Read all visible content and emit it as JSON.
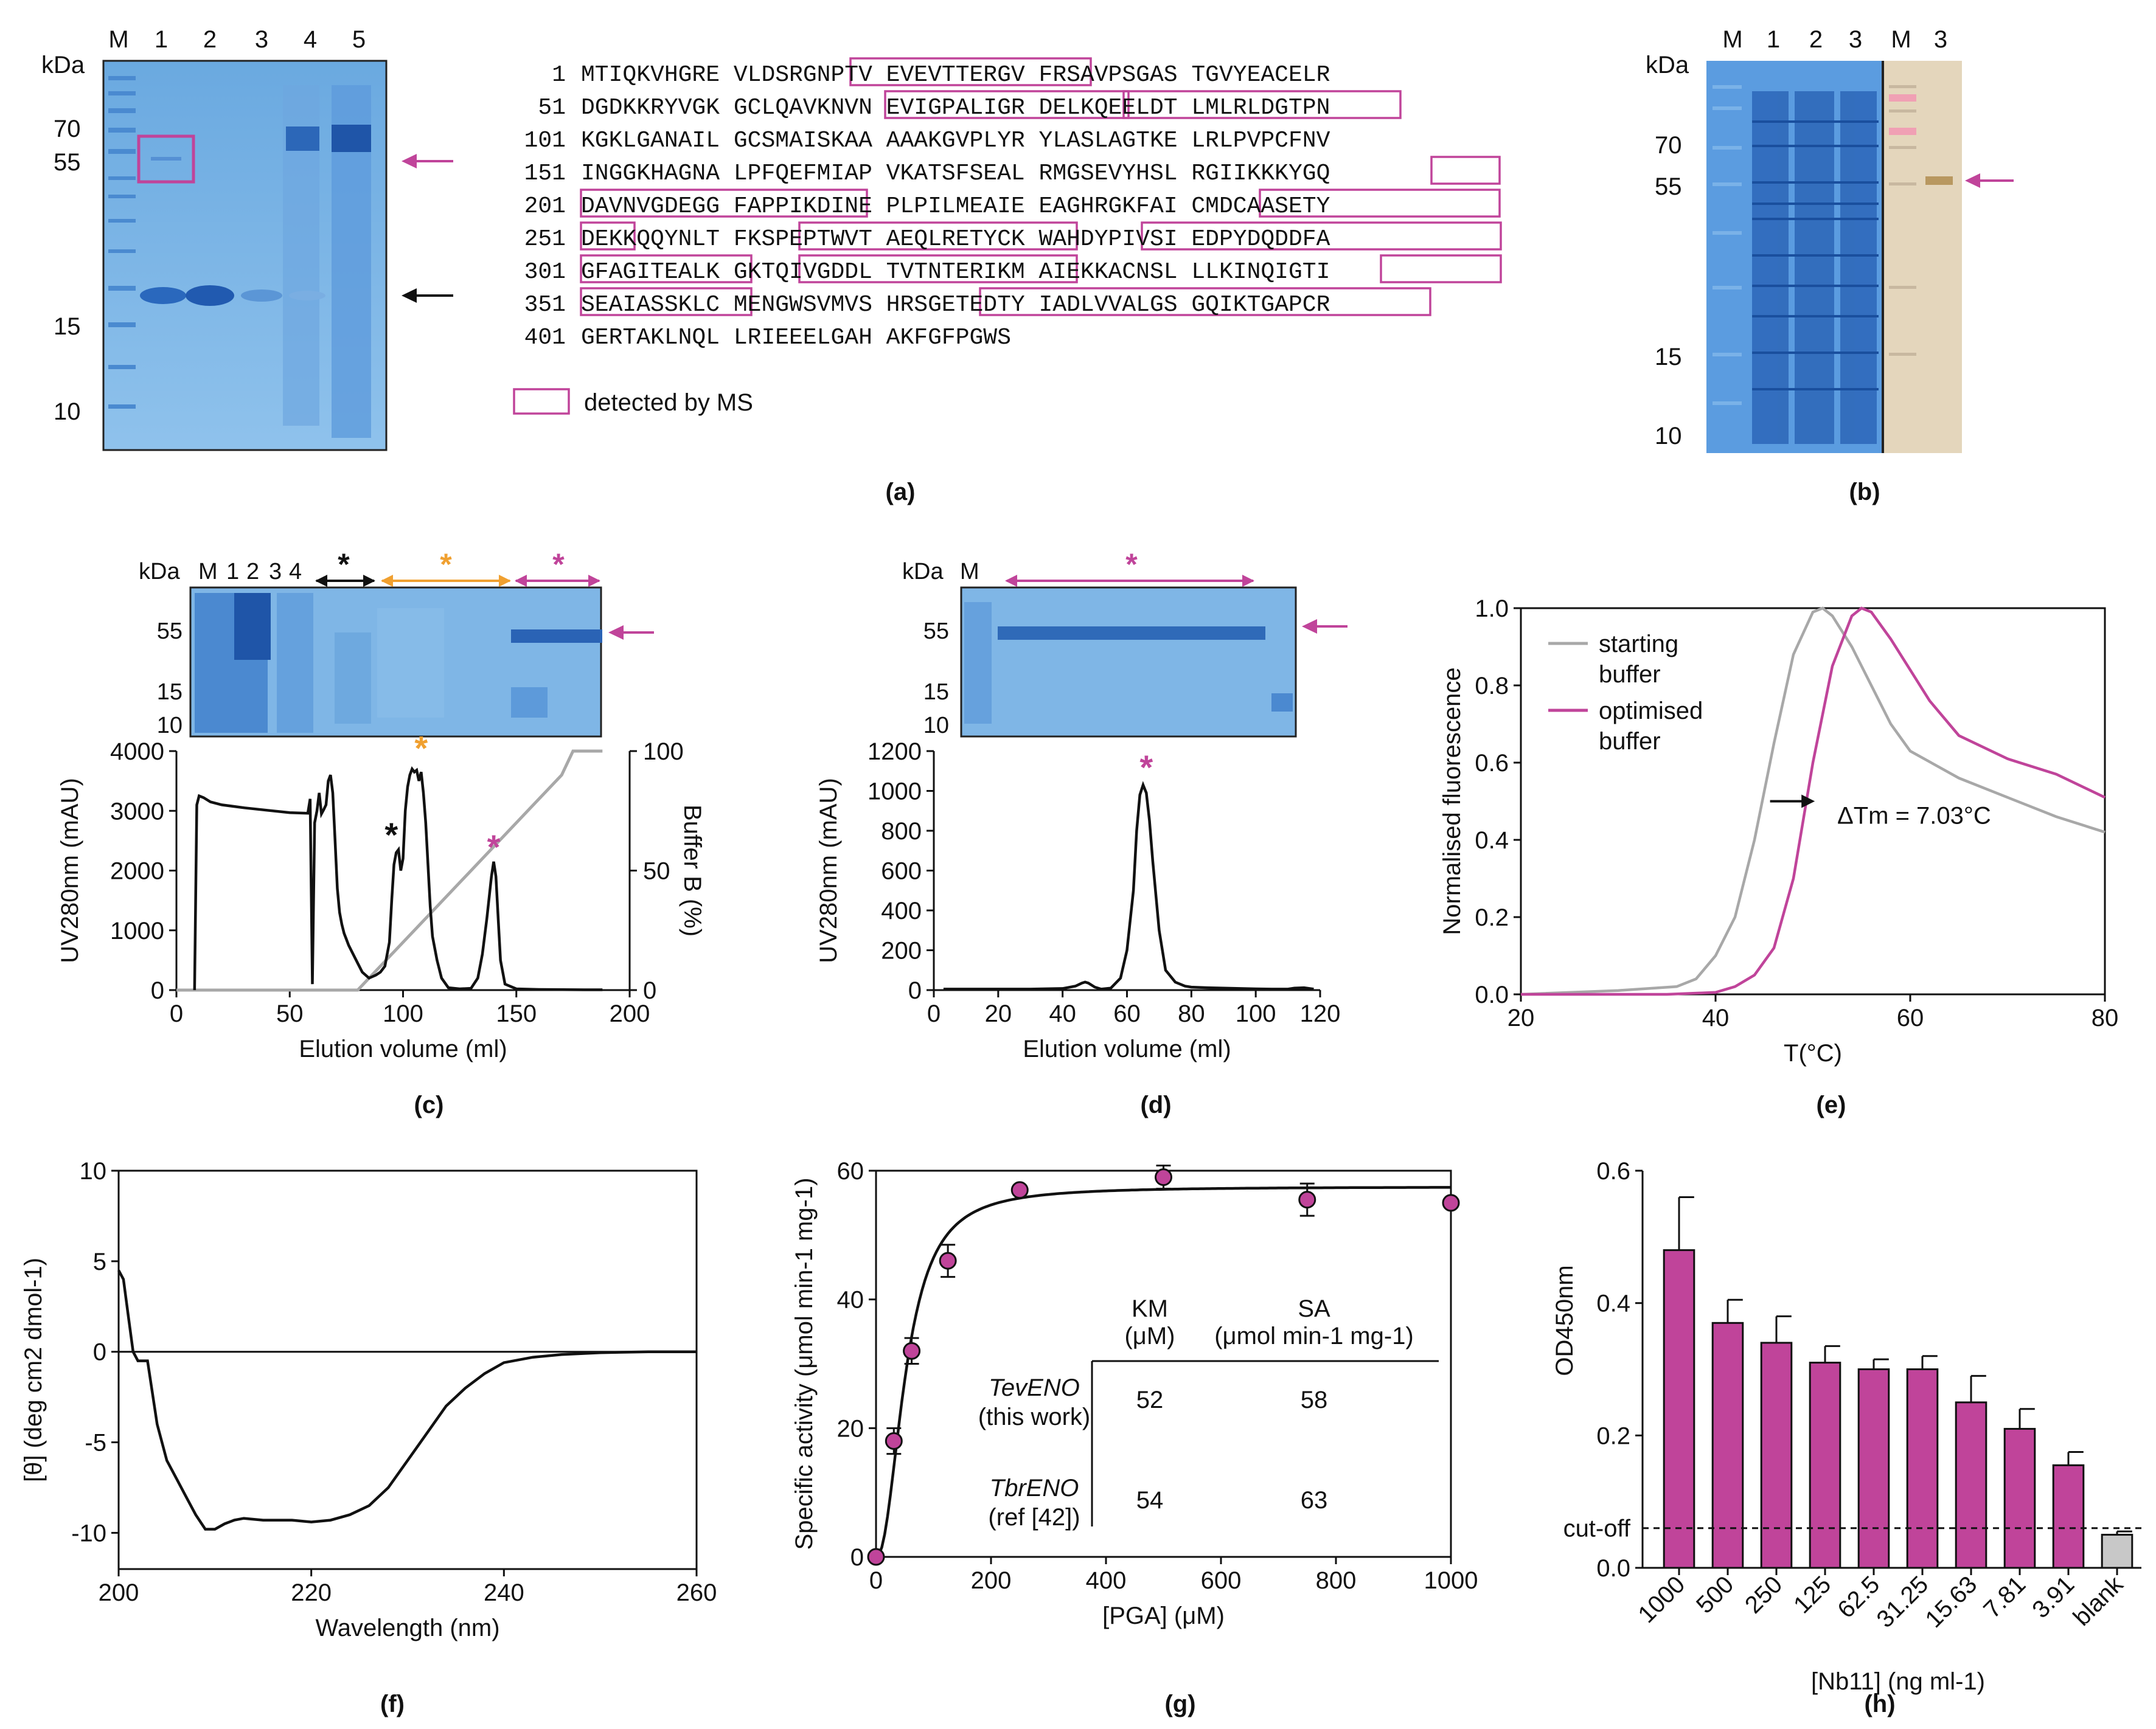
{
  "colors": {
    "magenta": "#c0449a",
    "orange": "#f0a030",
    "gel_blue": "#78b4e4",
    "gel_dark": "#2f6fc0",
    "grey": "#a8a8a8",
    "blot_bg": "#e4d6bc"
  },
  "panel_a": {
    "caption": "(a)",
    "lanes": [
      "M",
      "1",
      "2",
      "3",
      "4",
      "5"
    ],
    "kda_label": "kDa",
    "markers": [
      "70",
      "55",
      "15",
      "10"
    ],
    "sequence": [
      {
        "num": "1",
        "text": "MTIQKVHGRE VLDSRGNPTV EVEVTTERGV FRSAVPSGAS TGVYEACELR"
      },
      {
        "num": "51",
        "text": "DGDKKRYVGK GCLQAVKNVN EVIGPALIGR DELKQEELDT LMLRLDGTPN"
      },
      {
        "num": "101",
        "text": "KGKLGANAIL GCSMAISKAA AAAKGVPLYR YLASLAGTKE LRLPVPCFNV"
      },
      {
        "num": "151",
        "text": "INGGKHAGNA LPFQEFMIAP VKATSFSEAL RMGSEVYHSL RGIIKKKYGQ"
      },
      {
        "num": "201",
        "text": "DAVNVGDEGG FAPPIKDINE PLPILMEAIE EAGHRGKFAI CMDCAASETY"
      },
      {
        "num": "251",
        "text": "DEKKQQYNLT FKSPEPTWVT AEQLRETYCK WAHDYPIVSI EDPYDQDDFA"
      },
      {
        "num": "301",
        "text": "GFAGITEALK GKTQIVGDDL TVTNTERIKM AIEKKACNSL LLKINQIGTI"
      },
      {
        "num": "351",
        "text": "SEAIASSKLC MENGWSVMVS HRSGETEDTY IADLVVALGS GQIKTGAPCR"
      },
      {
        "num": "401",
        "text": "GERTAKLNQL LRIEEELGAH AKFGFPGWS"
      }
    ],
    "legend": "detected by MS"
  },
  "panel_b": {
    "caption": "(b)",
    "lanes": [
      "M",
      "1",
      "2",
      "3",
      "M",
      "3"
    ],
    "kda_label": "kDa",
    "markers": [
      "70",
      "55",
      "15",
      "10"
    ]
  },
  "panel_c": {
    "caption": "(c)",
    "gel_header": [
      "kDa",
      "M",
      "1",
      "2",
      "3",
      "4"
    ],
    "gel_markers": [
      "55",
      "15",
      "10"
    ],
    "star": "*",
    "chart_data": {
      "type": "line",
      "xlabel": "Elution volume (ml)",
      "ylabel": "UV280nm (mAU)",
      "y2label": "Buffer B (%)",
      "xlim": [
        0,
        200
      ],
      "ylim": [
        0,
        4000
      ],
      "y2lim": [
        0,
        100
      ],
      "xticks": [
        "0",
        "50",
        "100",
        "150",
        "200"
      ],
      "yticks": [
        "0",
        "1000",
        "2000",
        "3000",
        "4000"
      ],
      "y2ticks": [
        "0",
        "50",
        "100"
      ],
      "series": [
        {
          "name": "UV280",
          "x": [
            8,
            9,
            10,
            12,
            15,
            20,
            30,
            40,
            50,
            58,
            59,
            60,
            61,
            62,
            63,
            64,
            65,
            66,
            67,
            68,
            69,
            70,
            71,
            72,
            73,
            74,
            75,
            76,
            78,
            80,
            82,
            85,
            88,
            90,
            92,
            94,
            95,
            96,
            97,
            98,
            99,
            100,
            101,
            102,
            103,
            104,
            105,
            106,
            107,
            108,
            109,
            110,
            111,
            112,
            113,
            115,
            117,
            120,
            125,
            130,
            133,
            135,
            137,
            139,
            140,
            141,
            142,
            143,
            145,
            150,
            160,
            180,
            188
          ],
          "y": [
            0,
            3100,
            3250,
            3220,
            3150,
            3100,
            3050,
            3010,
            2970,
            2960,
            3200,
            100,
            2800,
            3000,
            3300,
            2950,
            3020,
            3100,
            3500,
            3600,
            3300,
            2500,
            1700,
            1300,
            1100,
            950,
            850,
            750,
            600,
            450,
            300,
            200,
            250,
            300,
            400,
            800,
            1500,
            2100,
            2300,
            2350,
            2000,
            2200,
            3000,
            3400,
            3600,
            3700,
            3650,
            3680,
            3500,
            3650,
            3300,
            2800,
            2100,
            1400,
            900,
            500,
            200,
            40,
            20,
            30,
            200,
            600,
            1200,
            1900,
            2150,
            1900,
            1200,
            500,
            100,
            20,
            10,
            5,
            5
          ]
        },
        {
          "name": "Buffer B",
          "x": [
            0,
            80,
            170,
            175,
            188
          ],
          "y": [
            0,
            0,
            90,
            100,
            100
          ]
        }
      ],
      "peak_marks": [
        {
          "x": 97,
          "label": "*",
          "color": "black"
        },
        {
          "x": 108,
          "label": "*",
          "color": "orange"
        },
        {
          "x": 140,
          "label": "*",
          "color": "magenta"
        }
      ]
    }
  },
  "panel_d": {
    "caption": "(d)",
    "gel_header": [
      "kDa",
      "M"
    ],
    "gel_markers": [
      "55",
      "15",
      "10"
    ],
    "star": "*",
    "chart_data": {
      "type": "line",
      "xlabel": "Elution volume (ml)",
      "ylabel": "UV280nm (mAU)",
      "xlim": [
        0,
        120
      ],
      "ylim": [
        0,
        1200
      ],
      "xticks": [
        "0",
        "20",
        "40",
        "60",
        "80",
        "100",
        "120"
      ],
      "yticks": [
        "0",
        "200",
        "400",
        "600",
        "800",
        "1000",
        "1200"
      ],
      "series": [
        {
          "name": "UV280",
          "x": [
            3,
            10,
            20,
            30,
            40,
            44,
            46,
            47,
            48,
            50,
            52,
            55,
            58,
            60,
            62,
            63,
            64,
            65,
            66,
            67,
            68,
            70,
            72,
            75,
            78,
            80,
            85,
            90,
            95,
            100,
            105,
            110,
            112,
            115,
            118
          ],
          "y": [
            5,
            5,
            5,
            5,
            8,
            20,
            35,
            40,
            35,
            15,
            5,
            10,
            60,
            200,
            500,
            800,
            980,
            1030,
            990,
            850,
            650,
            300,
            100,
            40,
            20,
            15,
            12,
            10,
            8,
            6,
            5,
            5,
            10,
            12,
            5
          ]
        }
      ],
      "peak_marks": [
        {
          "x": 66,
          "label": "*",
          "color": "magenta"
        }
      ]
    }
  },
  "panel_e": {
    "caption": "(e)",
    "chart_data": {
      "type": "line",
      "xlabel": "T(°C)",
      "ylabel": "Normalised fluorescence",
      "xlim": [
        20,
        80
      ],
      "ylim": [
        0,
        1
      ],
      "xticks": [
        "20",
        "40",
        "60",
        "80"
      ],
      "yticks": [
        "0.0",
        "0.2",
        "0.4",
        "0.6",
        "0.8",
        "1.0"
      ],
      "series": [
        {
          "name": "starting buffer",
          "x": [
            20,
            30,
            36,
            38,
            40,
            42,
            44,
            46,
            48,
            50,
            51,
            52,
            54,
            56,
            58,
            60,
            65,
            70,
            75,
            80
          ],
          "y": [
            0,
            0.01,
            0.02,
            0.04,
            0.1,
            0.2,
            0.4,
            0.65,
            0.88,
            0.99,
            1.0,
            0.98,
            0.9,
            0.8,
            0.7,
            0.63,
            0.56,
            0.51,
            0.46,
            0.42
          ]
        },
        {
          "name": "optimised buffer",
          "x": [
            20,
            35,
            40,
            42,
            44,
            46,
            48,
            50,
            52,
            54,
            55,
            56,
            58,
            60,
            62,
            65,
            70,
            75,
            80
          ],
          "y": [
            0,
            0,
            0.005,
            0.02,
            0.05,
            0.12,
            0.3,
            0.6,
            0.85,
            0.98,
            1.0,
            0.99,
            0.92,
            0.84,
            0.76,
            0.67,
            0.61,
            0.57,
            0.51
          ]
        }
      ],
      "legend": [
        "starting",
        "buffer",
        "optimised",
        "buffer"
      ],
      "annotation": "ΔTm = 7.03°C"
    }
  },
  "panel_f": {
    "caption": "(f)",
    "chart_data": {
      "type": "line",
      "xlabel": "Wavelength (nm)",
      "ylabel": "[θ] (deg cm2 dmol-1)",
      "xlim": [
        200,
        260
      ],
      "ylim": [
        -12,
        10
      ],
      "xticks": [
        "200",
        "220",
        "240",
        "260"
      ],
      "yticks": [
        "-10",
        "-5",
        "0",
        "5",
        "10"
      ],
      "series": [
        {
          "name": "CD",
          "x": [
            200,
            200.5,
            201,
            201.5,
            202,
            203,
            204,
            205,
            206,
            207,
            208,
            209,
            210,
            211,
            212,
            213,
            215,
            218,
            220,
            222,
            224,
            226,
            228,
            230,
            232,
            234,
            236,
            238,
            240,
            243,
            246,
            250,
            255,
            260
          ],
          "y": [
            4.5,
            4,
            2,
            0,
            -0.5,
            -0.5,
            -4,
            -6,
            -7,
            -8,
            -9,
            -9.8,
            -9.8,
            -9.5,
            -9.3,
            -9.2,
            -9.3,
            -9.3,
            -9.4,
            -9.3,
            -9,
            -8.5,
            -7.5,
            -6,
            -4.5,
            -3,
            -2,
            -1.2,
            -0.6,
            -0.3,
            -0.15,
            -0.05,
            0,
            0
          ]
        }
      ]
    }
  },
  "panel_g": {
    "caption": "(g)",
    "chart_data": {
      "type": "scatter",
      "xlabel": "[PGA] (μM)",
      "ylabel": "Specific activity (μmol min-1 mg-1)",
      "xlim": [
        0,
        1000
      ],
      "ylim": [
        0,
        60
      ],
      "xticks": [
        "0",
        "200",
        "400",
        "600",
        "800",
        "1000"
      ],
      "yticks": [
        "0",
        "20",
        "40",
        "60"
      ],
      "points": {
        "x": [
          0,
          31,
          62,
          125,
          250,
          500,
          750,
          1000
        ],
        "y": [
          0,
          18,
          32,
          46,
          57,
          59,
          55.5,
          55
        ],
        "err": [
          0,
          2,
          2,
          2.5,
          0,
          1.8,
          2.5,
          0
        ]
      },
      "fit": {
        "model": "sigmoidal",
        "ymax": 57.5
      }
    },
    "table": {
      "headers": [
        "KM",
        "(μM)",
        "SA",
        "(μmol min-1 mg-1)"
      ],
      "rows": [
        {
          "name1": "TevENO",
          "name2": "(this work)",
          "km": "52",
          "sa": "58"
        },
        {
          "name1": "TbrENO",
          "name2": "(ref [42])",
          "km": "54",
          "sa": "63"
        }
      ]
    }
  },
  "panel_h": {
    "caption": "(h)",
    "chart_data": {
      "type": "bar",
      "xlabel": "[Nb11] (ng ml-1)",
      "ylabel": "OD450nm",
      "ylim": [
        0,
        0.6
      ],
      "yticks": [
        "0.0",
        "0.2",
        "0.4",
        "0.6"
      ],
      "categories": [
        "1000",
        "500",
        "250",
        "125",
        "62.5",
        "31.25",
        "15.63",
        "7.81",
        "3.91",
        "blank"
      ],
      "values": [
        0.48,
        0.37,
        0.34,
        0.31,
        0.3,
        0.3,
        0.25,
        0.21,
        0.155,
        0.05
      ],
      "errors": [
        0.08,
        0.035,
        0.04,
        0.025,
        0.015,
        0.02,
        0.04,
        0.03,
        0.02,
        0.005
      ],
      "cutoff": 0.06,
      "cutoff_label": "cut-off"
    }
  }
}
